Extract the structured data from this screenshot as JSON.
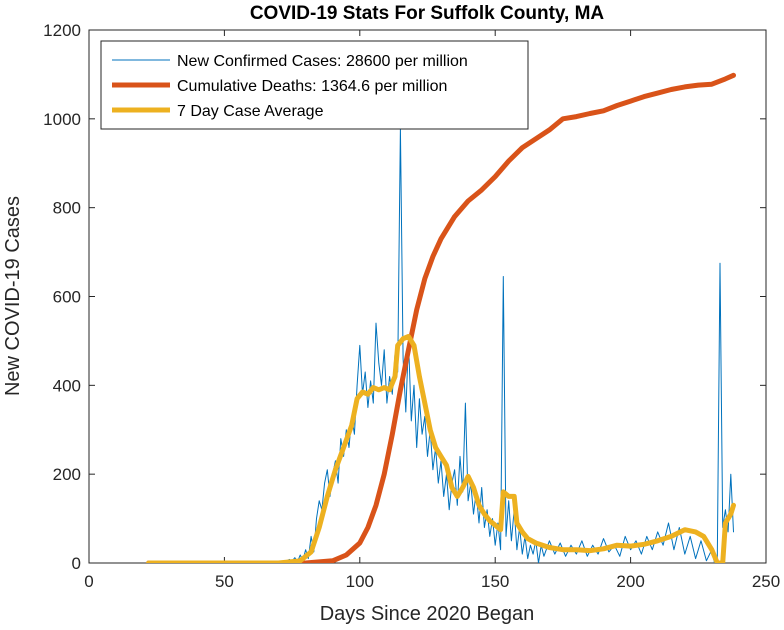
{
  "chart_data": {
    "type": "line",
    "title": "COVID-19 Stats For Suffolk County, MA",
    "xlabel": "Days Since 2020 Began",
    "ylabel": "New COVID-19 Cases",
    "xlim": [
      0,
      250
    ],
    "ylim": [
      0,
      1200
    ],
    "xticks": [
      0,
      50,
      100,
      150,
      200,
      250
    ],
    "yticks": [
      0,
      200,
      400,
      600,
      800,
      1000,
      1200
    ],
    "grid": false,
    "legend_position": "top-left",
    "series": [
      {
        "name": "New Confirmed Cases: 28600 per million",
        "color": "#0072bd",
        "points": [
          [
            22,
            0
          ],
          [
            40,
            0
          ],
          [
            60,
            0
          ],
          [
            72,
            2
          ],
          [
            74,
            8
          ],
          [
            75,
            4
          ],
          [
            76,
            12
          ],
          [
            77,
            3
          ],
          [
            78,
            18
          ],
          [
            79,
            6
          ],
          [
            80,
            30
          ],
          [
            81,
            10
          ],
          [
            82,
            60
          ],
          [
            83,
            25
          ],
          [
            84,
            100
          ],
          [
            85,
            140
          ],
          [
            86,
            120
          ],
          [
            87,
            180
          ],
          [
            88,
            210
          ],
          [
            89,
            150
          ],
          [
            90,
            200
          ],
          [
            91,
            230
          ],
          [
            92,
            180
          ],
          [
            93,
            280
          ],
          [
            94,
            240
          ],
          [
            95,
            300
          ],
          [
            96,
            260
          ],
          [
            97,
            330
          ],
          [
            98,
            290
          ],
          [
            99,
            400
          ],
          [
            100,
            490
          ],
          [
            101,
            380
          ],
          [
            102,
            430
          ],
          [
            103,
            350
          ],
          [
            104,
            410
          ],
          [
            105,
            360
          ],
          [
            106,
            540
          ],
          [
            107,
            450
          ],
          [
            108,
            400
          ],
          [
            109,
            480
          ],
          [
            110,
            360
          ],
          [
            111,
            420
          ],
          [
            112,
            380
          ],
          [
            113,
            470
          ],
          [
            114,
            430
          ],
          [
            115,
            980
          ],
          [
            116,
            460
          ],
          [
            117,
            340
          ],
          [
            118,
            500
          ],
          [
            119,
            320
          ],
          [
            120,
            400
          ],
          [
            121,
            260
          ],
          [
            122,
            370
          ],
          [
            123,
            290
          ],
          [
            124,
            330
          ],
          [
            125,
            240
          ],
          [
            126,
            300
          ],
          [
            127,
            210
          ],
          [
            128,
            260
          ],
          [
            129,
            180
          ],
          [
            130,
            230
          ],
          [
            131,
            150
          ],
          [
            132,
            200
          ],
          [
            133,
            120
          ],
          [
            134,
            180
          ],
          [
            135,
            210
          ],
          [
            136,
            130
          ],
          [
            137,
            240
          ],
          [
            138,
            160
          ],
          [
            139,
            360
          ],
          [
            140,
            140
          ],
          [
            141,
            180
          ],
          [
            142,
            110
          ],
          [
            143,
            160
          ],
          [
            144,
            90
          ],
          [
            145,
            170
          ],
          [
            146,
            80
          ],
          [
            147,
            120
          ],
          [
            148,
            60
          ],
          [
            149,
            100
          ],
          [
            150,
            40
          ],
          [
            151,
            90
          ],
          [
            152,
            30
          ],
          [
            153,
            645
          ],
          [
            154,
            60
          ],
          [
            155,
            140
          ],
          [
            156,
            50
          ],
          [
            157,
            120
          ],
          [
            158,
            30
          ],
          [
            159,
            80
          ],
          [
            160,
            20
          ],
          [
            161,
            60
          ],
          [
            162,
            10
          ],
          [
            163,
            40
          ],
          [
            164,
            20
          ],
          [
            165,
            50
          ],
          [
            166,
            0
          ],
          [
            167,
            40
          ],
          [
            168,
            15
          ],
          [
            170,
            50
          ],
          [
            172,
            20
          ],
          [
            174,
            45
          ],
          [
            176,
            15
          ],
          [
            178,
            40
          ],
          [
            180,
            20
          ],
          [
            182,
            50
          ],
          [
            184,
            15
          ],
          [
            186,
            40
          ],
          [
            188,
            20
          ],
          [
            190,
            55
          ],
          [
            192,
            25
          ],
          [
            194,
            40
          ],
          [
            196,
            15
          ],
          [
            198,
            60
          ],
          [
            200,
            30
          ],
          [
            202,
            50
          ],
          [
            204,
            20
          ],
          [
            206,
            60
          ],
          [
            208,
            30
          ],
          [
            210,
            70
          ],
          [
            212,
            40
          ],
          [
            214,
            90
          ],
          [
            216,
            30
          ],
          [
            218,
            80
          ],
          [
            220,
            20
          ],
          [
            222,
            60
          ],
          [
            224,
            10
          ],
          [
            226,
            50
          ],
          [
            228,
            5
          ],
          [
            230,
            30
          ],
          [
            231,
            0
          ],
          [
            232,
            10
          ],
          [
            233,
            675
          ],
          [
            234,
            80
          ],
          [
            235,
            120
          ],
          [
            236,
            70
          ],
          [
            237,
            200
          ],
          [
            238,
            70
          ]
        ]
      },
      {
        "name": "Cumulative Deaths: 1364.6 per million",
        "color": "#d95319",
        "points": [
          [
            22,
            0
          ],
          [
            80,
            0
          ],
          [
            90,
            5
          ],
          [
            95,
            18
          ],
          [
            100,
            45
          ],
          [
            103,
            80
          ],
          [
            106,
            130
          ],
          [
            109,
            200
          ],
          [
            112,
            290
          ],
          [
            115,
            390
          ],
          [
            118,
            480
          ],
          [
            121,
            570
          ],
          [
            124,
            640
          ],
          [
            127,
            690
          ],
          [
            130,
            730
          ],
          [
            135,
            780
          ],
          [
            140,
            815
          ],
          [
            145,
            840
          ],
          [
            150,
            870
          ],
          [
            155,
            905
          ],
          [
            160,
            935
          ],
          [
            165,
            955
          ],
          [
            170,
            975
          ],
          [
            175,
            1000
          ],
          [
            180,
            1005
          ],
          [
            185,
            1012
          ],
          [
            190,
            1018
          ],
          [
            195,
            1030
          ],
          [
            200,
            1040
          ],
          [
            205,
            1050
          ],
          [
            210,
            1058
          ],
          [
            215,
            1066
          ],
          [
            220,
            1072
          ],
          [
            225,
            1076
          ],
          [
            230,
            1078
          ],
          [
            235,
            1090
          ],
          [
            238,
            1098
          ]
        ]
      },
      {
        "name": "7 Day Case Average",
        "color": "#edb120",
        "points": [
          [
            22,
            0
          ],
          [
            70,
            0
          ],
          [
            78,
            5
          ],
          [
            82,
            25
          ],
          [
            85,
            80
          ],
          [
            88,
            150
          ],
          [
            91,
            210
          ],
          [
            94,
            260
          ],
          [
            97,
            310
          ],
          [
            99,
            370
          ],
          [
            101,
            385
          ],
          [
            103,
            380
          ],
          [
            105,
            395
          ],
          [
            107,
            390
          ],
          [
            109,
            395
          ],
          [
            111,
            390
          ],
          [
            113,
            420
          ],
          [
            114,
            490
          ],
          [
            116,
            505
          ],
          [
            118,
            510
          ],
          [
            120,
            490
          ],
          [
            122,
            420
          ],
          [
            124,
            360
          ],
          [
            126,
            300
          ],
          [
            128,
            260
          ],
          [
            130,
            240
          ],
          [
            132,
            220
          ],
          [
            134,
            170
          ],
          [
            136,
            150
          ],
          [
            138,
            170
          ],
          [
            140,
            195
          ],
          [
            142,
            170
          ],
          [
            144,
            130
          ],
          [
            146,
            110
          ],
          [
            148,
            95
          ],
          [
            150,
            85
          ],
          [
            152,
            75
          ],
          [
            153,
            160
          ],
          [
            155,
            150
          ],
          [
            157,
            150
          ],
          [
            158,
            90
          ],
          [
            160,
            70
          ],
          [
            162,
            55
          ],
          [
            165,
            45
          ],
          [
            170,
            35
          ],
          [
            175,
            30
          ],
          [
            180,
            30
          ],
          [
            185,
            28
          ],
          [
            190,
            32
          ],
          [
            195,
            40
          ],
          [
            200,
            38
          ],
          [
            205,
            42
          ],
          [
            210,
            50
          ],
          [
            215,
            60
          ],
          [
            220,
            75
          ],
          [
            224,
            70
          ],
          [
            227,
            60
          ],
          [
            230,
            30
          ],
          [
            232,
            0
          ],
          [
            234,
            0
          ],
          [
            235,
            90
          ],
          [
            237,
            110
          ],
          [
            238,
            130
          ]
        ]
      }
    ]
  }
}
